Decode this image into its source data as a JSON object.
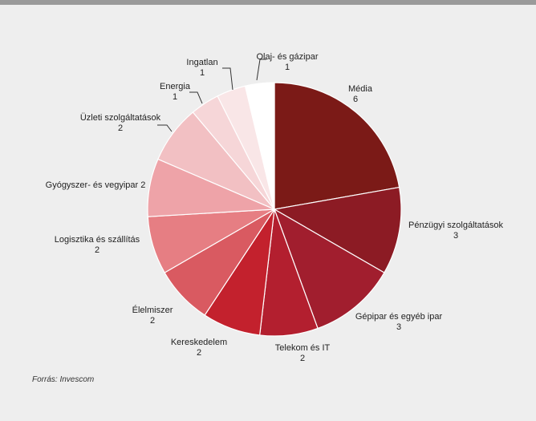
{
  "chart_data": {
    "type": "pie",
    "title": "",
    "categories": [
      "Média",
      "Pénzügyi szolgáltatások",
      "Gépipar és egyéb ipar",
      "Telekom és IT",
      "Kereskedelem",
      "Élelmiszer",
      "Logisztika és szállítás",
      "Gyógyszer- és vegyipar",
      "Üzleti szolgáltatások",
      "Energia",
      "Ingatlan",
      "Olaj- és gázipar"
    ],
    "values": [
      6,
      3,
      3,
      2,
      2,
      2,
      2,
      2,
      2,
      1,
      1,
      1
    ],
    "value_labels": [
      "6",
      "3",
      "3",
      "2",
      "2",
      "2",
      "2",
      "2",
      "2",
      "1",
      "1",
      "1"
    ],
    "colors": [
      "#7b1a17",
      "#8c1b24",
      "#a11e2e",
      "#b31f2f",
      "#c3212d",
      "#d95a61",
      "#e67e83",
      "#eea3a8",
      "#f2c0c3",
      "#f6d6d8",
      "#f9e6e7",
      "#ffffff"
    ],
    "start": "12 o'clock",
    "direction": "clockwise",
    "legend": "none"
  },
  "source_note": "Forrás: Invescom"
}
